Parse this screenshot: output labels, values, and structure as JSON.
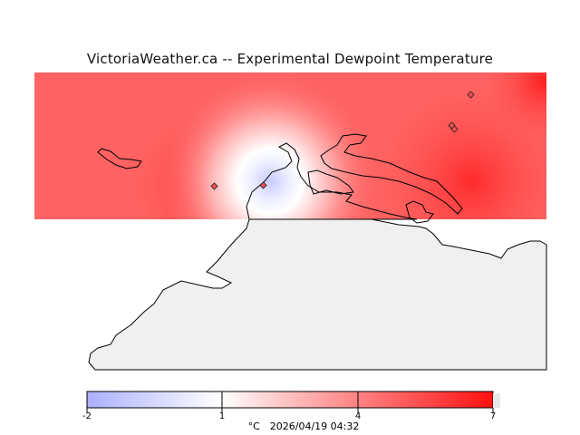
{
  "title": "VictoriaWeather.ca -- Experimental Dewpoint Temperature",
  "colorbar": {
    "min_label": "-2",
    "ticks": [
      "-2",
      "1",
      "4",
      "7"
    ],
    "units": "°C",
    "timestamp": "2026/04/19 04:32",
    "colors": {
      "cold": "#aab0ff",
      "mid": "#ffffff",
      "warm": "#ff1a1a"
    }
  },
  "map": {
    "land_color": "#f0f0f0",
    "coastline_color": "#000000"
  }
}
